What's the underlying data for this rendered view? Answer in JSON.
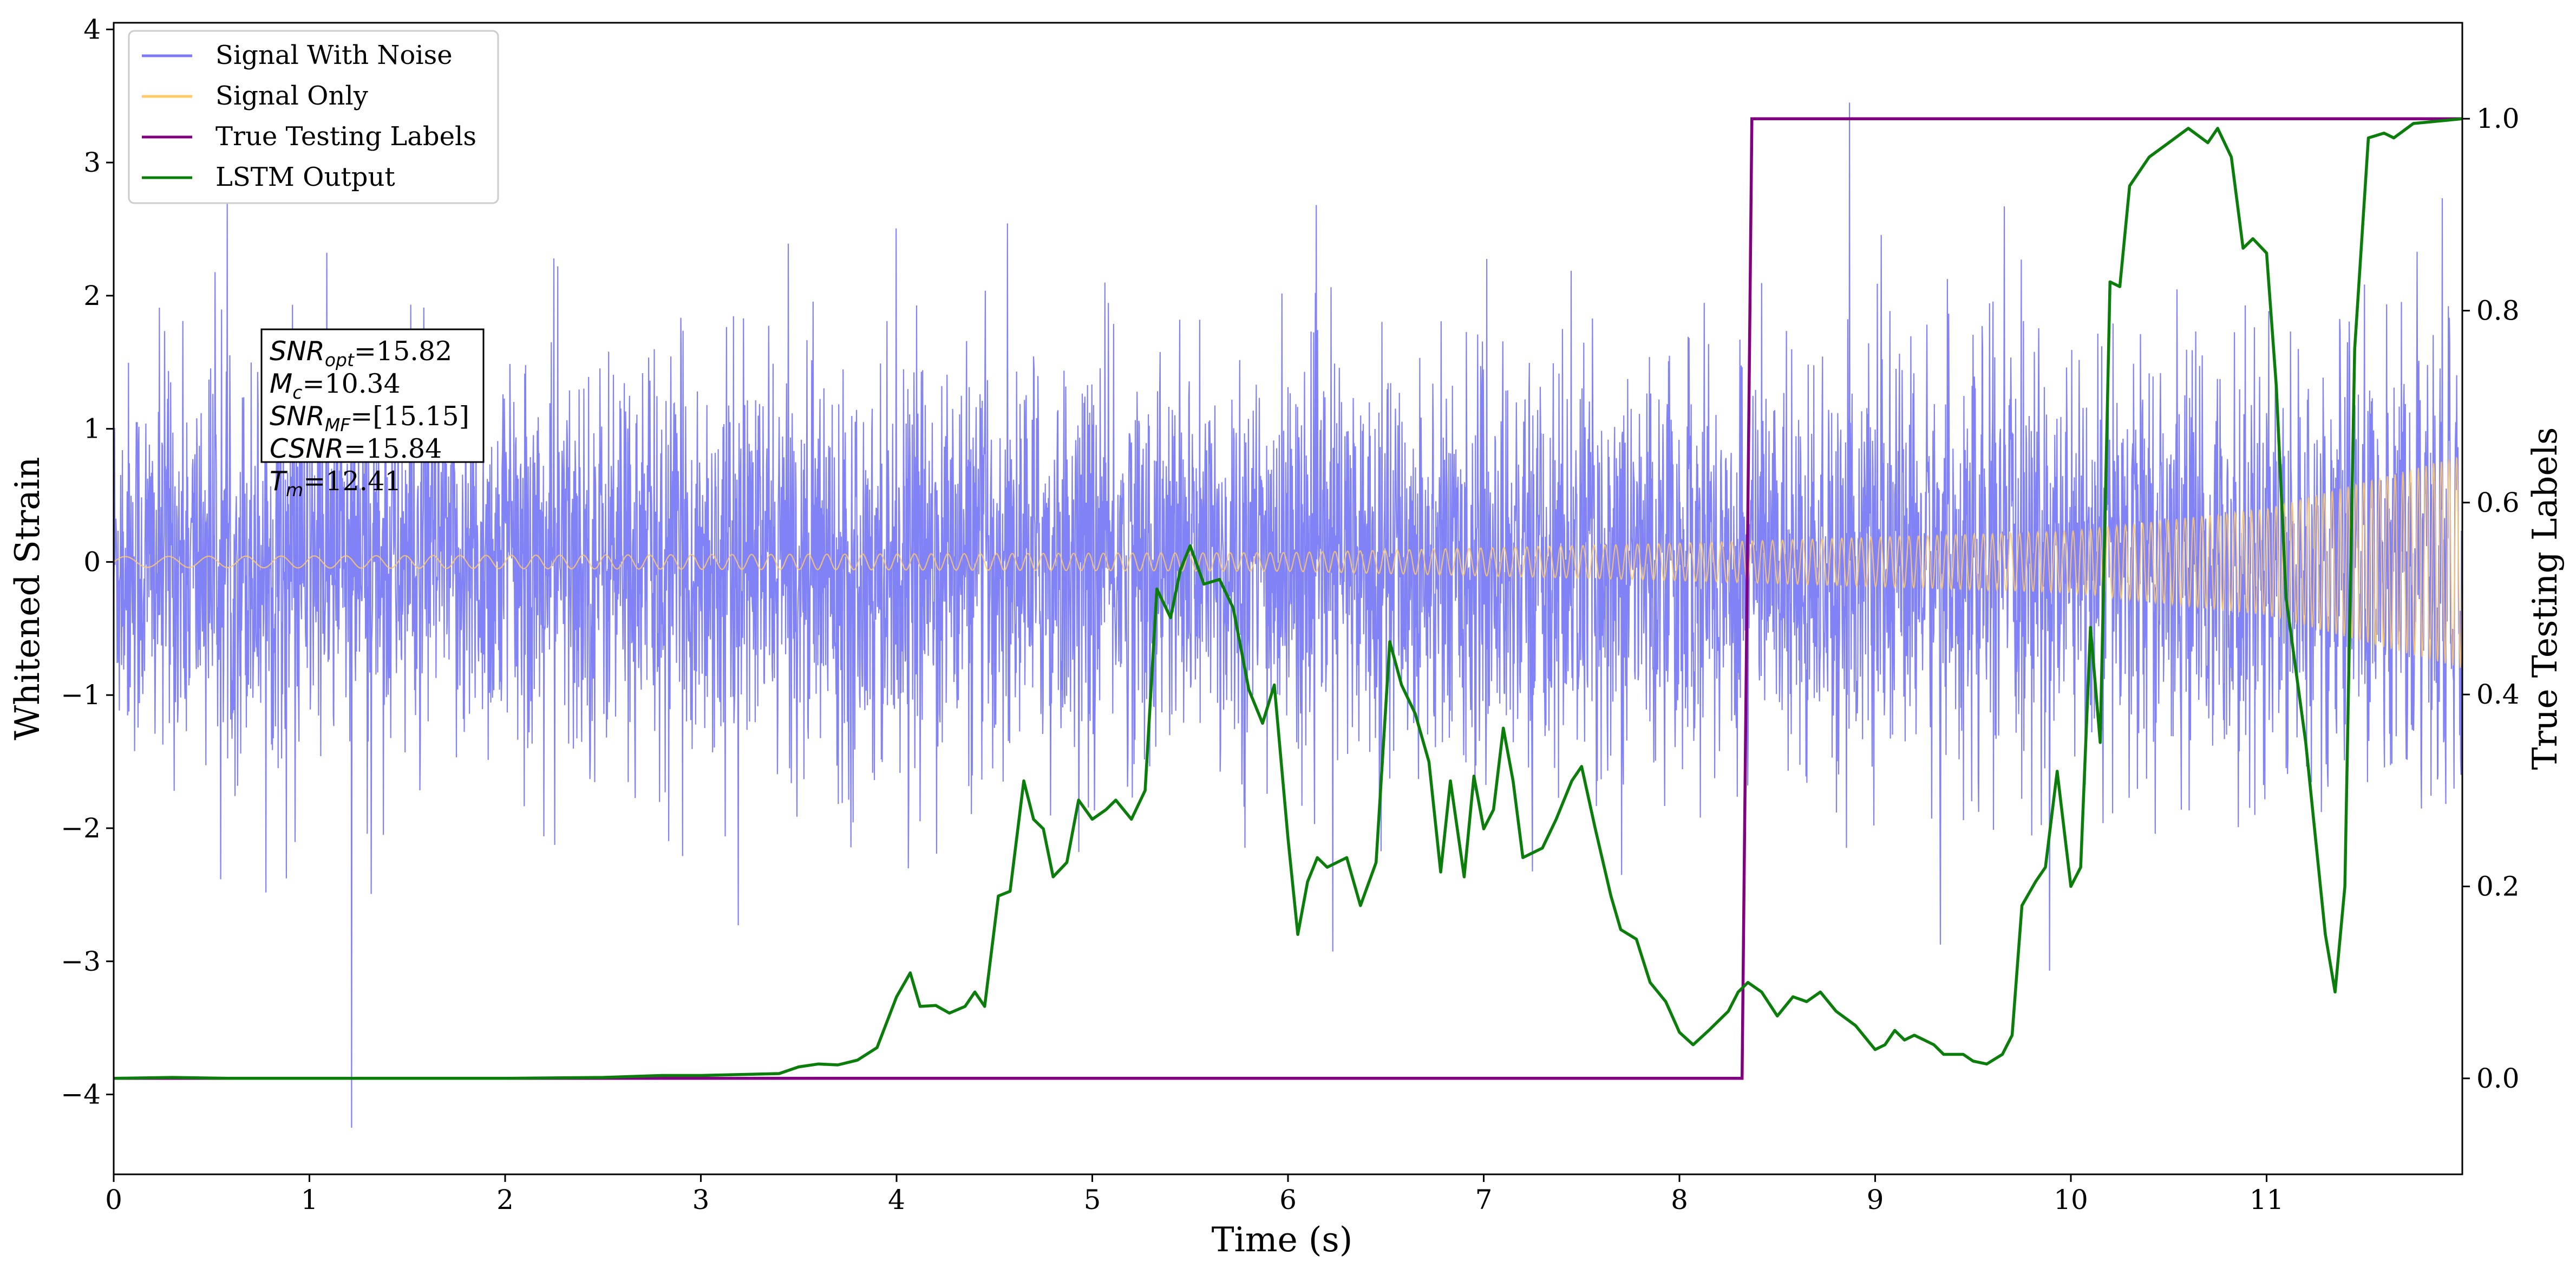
{
  "chart_data": {
    "type": "line",
    "xlabel": "Time (s)",
    "ylabel_left": "Whitened Strain",
    "ylabel_right": "True Testing Labels",
    "xlim": [
      0,
      12.0
    ],
    "ylim_left": [
      -4.6,
      4.05
    ],
    "ylim_right": [
      -0.1,
      1.1
    ],
    "x_ticks": [
      "0",
      "1",
      "2",
      "3",
      "4",
      "5",
      "6",
      "7",
      "8",
      "9",
      "10",
      "11"
    ],
    "y_left_ticks": [
      "−4",
      "−3",
      "−2",
      "−1",
      "0",
      "1",
      "2",
      "3",
      "4"
    ],
    "y_right_ticks": [
      "0.0",
      "0.2",
      "0.4",
      "0.6",
      "0.8",
      "1.0"
    ],
    "grid": false,
    "legend_position": "top-left",
    "colors": {
      "noise": "#7b7bf7",
      "signal": "#ffc966",
      "labels": "#800080",
      "lstm": "#0b7d0b"
    },
    "series": [
      {
        "name": "Signal With Noise",
        "axis": "left",
        "style": "dense noisy trace, amplitude envelope about ±2.2 with spikes",
        "min": -4.25,
        "max": 3.45
      },
      {
        "name": "Signal Only",
        "axis": "left",
        "style": "chirp oscillation growing in amplitude",
        "amplitude_points": [
          [
            0,
            0.04
          ],
          [
            6,
            0.07
          ],
          [
            8,
            0.14
          ],
          [
            10,
            0.23
          ],
          [
            11,
            0.4
          ],
          [
            12,
            0.8
          ]
        ]
      },
      {
        "name": "True Testing Labels",
        "axis": "right",
        "points": [
          [
            0,
            0
          ],
          [
            8.32,
            0
          ],
          [
            8.37,
            1
          ],
          [
            12.0,
            1
          ]
        ]
      },
      {
        "name": "LSTM Output",
        "axis": "right",
        "points": [
          [
            0,
            0.0
          ],
          [
            0.3,
            0.001
          ],
          [
            0.6,
            0.0
          ],
          [
            1.0,
            0.0
          ],
          [
            1.5,
            0.0
          ],
          [
            2.0,
            0.0
          ],
          [
            2.5,
            0.001
          ],
          [
            2.8,
            0.003
          ],
          [
            3.0,
            0.003
          ],
          [
            3.2,
            0.004
          ],
          [
            3.4,
            0.005
          ],
          [
            3.5,
            0.012
          ],
          [
            3.6,
            0.015
          ],
          [
            3.7,
            0.014
          ],
          [
            3.8,
            0.019
          ],
          [
            3.9,
            0.032
          ],
          [
            4.0,
            0.085
          ],
          [
            4.07,
            0.11
          ],
          [
            4.12,
            0.075
          ],
          [
            4.2,
            0.076
          ],
          [
            4.27,
            0.068
          ],
          [
            4.35,
            0.075
          ],
          [
            4.4,
            0.09
          ],
          [
            4.45,
            0.075
          ],
          [
            4.52,
            0.19
          ],
          [
            4.58,
            0.195
          ],
          [
            4.65,
            0.31
          ],
          [
            4.7,
            0.27
          ],
          [
            4.75,
            0.26
          ],
          [
            4.8,
            0.21
          ],
          [
            4.87,
            0.225
          ],
          [
            4.93,
            0.29
          ],
          [
            5.0,
            0.27
          ],
          [
            5.07,
            0.28
          ],
          [
            5.12,
            0.29
          ],
          [
            5.2,
            0.27
          ],
          [
            5.27,
            0.3
          ],
          [
            5.33,
            0.51
          ],
          [
            5.4,
            0.48
          ],
          [
            5.45,
            0.53
          ],
          [
            5.5,
            0.555
          ],
          [
            5.57,
            0.515
          ],
          [
            5.65,
            0.52
          ],
          [
            5.72,
            0.49
          ],
          [
            5.8,
            0.405
          ],
          [
            5.87,
            0.37
          ],
          [
            5.93,
            0.41
          ],
          [
            6.0,
            0.25
          ],
          [
            6.05,
            0.15
          ],
          [
            6.1,
            0.205
          ],
          [
            6.15,
            0.23
          ],
          [
            6.2,
            0.22
          ],
          [
            6.25,
            0.225
          ],
          [
            6.3,
            0.23
          ],
          [
            6.37,
            0.18
          ],
          [
            6.45,
            0.225
          ],
          [
            6.52,
            0.455
          ],
          [
            6.58,
            0.41
          ],
          [
            6.65,
            0.38
          ],
          [
            6.72,
            0.33
          ],
          [
            6.78,
            0.215
          ],
          [
            6.83,
            0.31
          ],
          [
            6.9,
            0.21
          ],
          [
            6.95,
            0.315
          ],
          [
            7.0,
            0.26
          ],
          [
            7.05,
            0.28
          ],
          [
            7.1,
            0.365
          ],
          [
            7.15,
            0.31
          ],
          [
            7.2,
            0.23
          ],
          [
            7.3,
            0.24
          ],
          [
            7.37,
            0.27
          ],
          [
            7.45,
            0.31
          ],
          [
            7.5,
            0.325
          ],
          [
            7.57,
            0.26
          ],
          [
            7.65,
            0.19
          ],
          [
            7.7,
            0.155
          ],
          [
            7.78,
            0.145
          ],
          [
            7.85,
            0.1
          ],
          [
            7.93,
            0.08
          ],
          [
            8.0,
            0.048
          ],
          [
            8.07,
            0.035
          ],
          [
            8.15,
            0.05
          ],
          [
            8.25,
            0.07
          ],
          [
            8.3,
            0.09
          ],
          [
            8.35,
            0.1
          ],
          [
            8.42,
            0.09
          ],
          [
            8.5,
            0.065
          ],
          [
            8.58,
            0.085
          ],
          [
            8.65,
            0.08
          ],
          [
            8.72,
            0.09
          ],
          [
            8.8,
            0.07
          ],
          [
            8.9,
            0.055
          ],
          [
            9.0,
            0.03
          ],
          [
            9.05,
            0.035
          ],
          [
            9.1,
            0.05
          ],
          [
            9.15,
            0.04
          ],
          [
            9.2,
            0.045
          ],
          [
            9.3,
            0.035
          ],
          [
            9.35,
            0.025
          ],
          [
            9.45,
            0.025
          ],
          [
            9.5,
            0.018
          ],
          [
            9.57,
            0.015
          ],
          [
            9.65,
            0.025
          ],
          [
            9.7,
            0.045
          ],
          [
            9.75,
            0.18
          ],
          [
            9.82,
            0.205
          ],
          [
            9.87,
            0.22
          ],
          [
            9.93,
            0.32
          ],
          [
            10.0,
            0.2
          ],
          [
            10.05,
            0.22
          ],
          [
            10.1,
            0.47
          ],
          [
            10.15,
            0.35
          ],
          [
            10.2,
            0.83
          ],
          [
            10.25,
            0.825
          ],
          [
            10.3,
            0.93
          ],
          [
            10.4,
            0.96
          ],
          [
            10.5,
            0.975
          ],
          [
            10.6,
            0.99
          ],
          [
            10.7,
            0.975
          ],
          [
            10.75,
            0.99
          ],
          [
            10.82,
            0.96
          ],
          [
            10.88,
            0.865
          ],
          [
            10.93,
            0.875
          ],
          [
            11.0,
            0.86
          ],
          [
            11.05,
            0.72
          ],
          [
            11.1,
            0.5
          ],
          [
            11.2,
            0.35
          ],
          [
            11.3,
            0.15
          ],
          [
            11.35,
            0.09
          ],
          [
            11.4,
            0.2
          ],
          [
            11.45,
            0.76
          ],
          [
            11.52,
            0.98
          ],
          [
            11.6,
            0.985
          ],
          [
            11.65,
            0.98
          ],
          [
            11.75,
            0.995
          ],
          [
            11.85,
            0.997
          ],
          [
            12.0,
            1.0
          ]
        ]
      }
    ],
    "annotation": {
      "lines": [
        {
          "main": "SNR",
          "sub": "opt",
          "value": "=15.82"
        },
        {
          "main": "M",
          "sub": "c",
          "value": "=10.34"
        },
        {
          "main": "SNR",
          "sub": "MF",
          "value": "=[15.15]"
        },
        {
          "main": "CSNR",
          "sub": "",
          "value": "=15.84"
        },
        {
          "main": "T",
          "sub": "m",
          "value": "=12.41"
        }
      ]
    }
  }
}
